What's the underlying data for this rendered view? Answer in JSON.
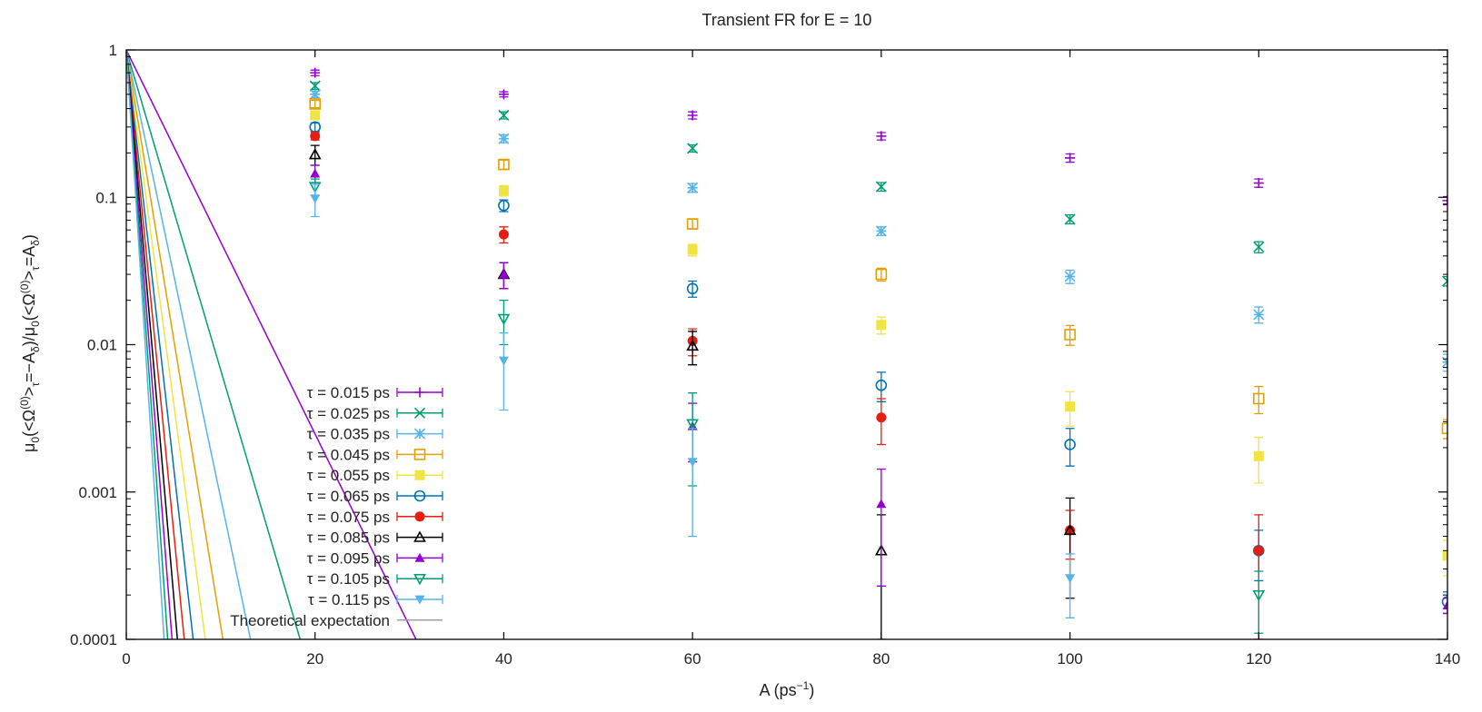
{
  "chart_data": {
    "type": "scatter",
    "title": "Transient FR for E = 10",
    "xlabel": {
      "main": "A (ps",
      "sup": "−1",
      "close": ")"
    },
    "ylabel": {
      "prefix": "μ",
      "sub0": "0",
      "part1": "(<Ω",
      "sup1": "(0)",
      "part2": ">",
      "sub1": "τ",
      "part3": "=−A",
      "sub2": "δ",
      "part4": ")/μ",
      "sub3": "0",
      "part5": "(<Ω",
      "sup2": "(0)",
      "part6": ">",
      "sub4": "τ",
      "part7": "=A",
      "sub5": "δ",
      "part8": ")"
    },
    "xscale": "linear",
    "yscale": "log",
    "xlim": [
      0,
      140
    ],
    "ylim": [
      0.0001,
      1
    ],
    "xticks": [
      "0",
      "20",
      "40",
      "60",
      "80",
      "100",
      "120",
      "140"
    ],
    "xtick_values": [
      0,
      20,
      40,
      60,
      80,
      100,
      120,
      140
    ],
    "yticks": [
      "0.0001",
      "0.001",
      "0.01",
      "0.1",
      "1"
    ],
    "ytick_values": [
      0.0001,
      0.001,
      0.01,
      0.1,
      1
    ],
    "grid": false,
    "legend_position": "bottom-left",
    "x": [
      20,
      40,
      60,
      80,
      100,
      120,
      140
    ],
    "series": [
      {
        "name": "τ = 0.015 ps",
        "color": "#9400d3",
        "marker": "plus",
        "slope": 0.015,
        "values": [
          0.7,
          0.5,
          0.36,
          0.26,
          0.185,
          0.125,
          0.095
        ],
        "err": [
          0.03,
          0.02,
          0.02,
          0.015,
          0.012,
          0.008,
          0.006
        ]
      },
      {
        "name": "τ = 0.025 ps",
        "color": "#009e73",
        "marker": "cross",
        "slope": 0.025,
        "values": [
          0.57,
          0.36,
          0.215,
          0.118,
          0.071,
          0.046,
          0.027
        ],
        "err": [
          0.03,
          0.02,
          0.012,
          0.008,
          0.005,
          0.004,
          0.002
        ]
      },
      {
        "name": "τ = 0.035 ps",
        "color": "#56b4e9",
        "marker": "star",
        "slope": 0.035,
        "values": [
          0.5,
          0.25,
          0.116,
          0.059,
          0.029,
          0.016,
          0.0076
        ],
        "err": [
          0.025,
          0.015,
          0.008,
          0.004,
          0.003,
          0.002,
          0.001
        ]
      },
      {
        "name": "τ = 0.045 ps",
        "color": "#e69f00",
        "marker": "square-open",
        "slope": 0.045,
        "values": [
          0.43,
          0.167,
          0.066,
          0.03,
          0.0117,
          0.0043,
          0.0027
        ],
        "err": [
          0.025,
          0.012,
          0.005,
          0.003,
          0.0018,
          0.0009,
          0.0004
        ]
      },
      {
        "name": "τ = 0.055 ps",
        "color": "#f0e442",
        "marker": "square-filled",
        "slope": 0.055,
        "values": [
          0.36,
          0.111,
          0.044,
          0.0136,
          0.0038,
          0.00175,
          0.00037
        ],
        "err": [
          0.02,
          0.009,
          0.004,
          0.0018,
          0.001,
          0.0006,
          0.0001
        ]
      },
      {
        "name": "τ = 0.065 ps",
        "color": "#0072b2",
        "marker": "circle-open",
        "slope": 0.065,
        "values": [
          0.3,
          0.088,
          0.024,
          0.0053,
          0.0021,
          0.0004,
          0.00018
        ],
        "err": [
          0.02,
          0.008,
          0.003,
          0.0012,
          0.0006,
          0.00015,
          3e-05
        ]
      },
      {
        "name": "τ = 0.075 ps",
        "color": "#e51e10",
        "marker": "circle-filled",
        "slope": 0.075,
        "values": [
          0.26,
          0.056,
          0.0106,
          0.0032,
          0.00055,
          0.0004
        ],
        "err": [
          0.015,
          0.007,
          0.0022,
          0.0011,
          0.0002,
          0.0003
        ]
      },
      {
        "name": "τ = 0.085 ps",
        "color": "#000000",
        "marker": "triangle-open",
        "slope": 0.085,
        "values": [
          0.195,
          0.03,
          0.0098,
          0.0004,
          0.00055
        ],
        "err": [
          0.03,
          0.006,
          0.0025,
          0.0003,
          0.00036
        ]
      },
      {
        "name": "τ = 0.095 ps",
        "color": "#9400d3",
        "marker": "triangle-filled",
        "slope": 0.095,
        "values": [
          0.145,
          0.03,
          0.0028,
          0.00083,
          0.0,
          0.0,
          0.00017
        ],
        "err": [
          0.02,
          0.006,
          0.0012,
          0.0006,
          0,
          0,
          2e-05
        ]
      },
      {
        "name": "τ = 0.105 ps",
        "color": "#009e73",
        "marker": "triangle-down-open",
        "slope": 0.105,
        "values": [
          0.118,
          0.015,
          0.0029,
          0.0,
          0.0,
          0.0002
        ],
        "err": [
          0.015,
          0.005,
          0.0018,
          0,
          0,
          9e-05
        ]
      },
      {
        "name": "τ = 0.115 ps",
        "color": "#56b4e9",
        "marker": "triangle-down-filled",
        "slope": 0.115,
        "values": [
          0.098,
          0.0078,
          0.0016,
          0.0,
          0.00026
        ],
        "err": [
          0.024,
          0.0042,
          0.0011,
          0,
          0.00012
        ]
      }
    ],
    "theory_label": "Theoretical expectation",
    "theory_color": "#a0a0a0"
  }
}
